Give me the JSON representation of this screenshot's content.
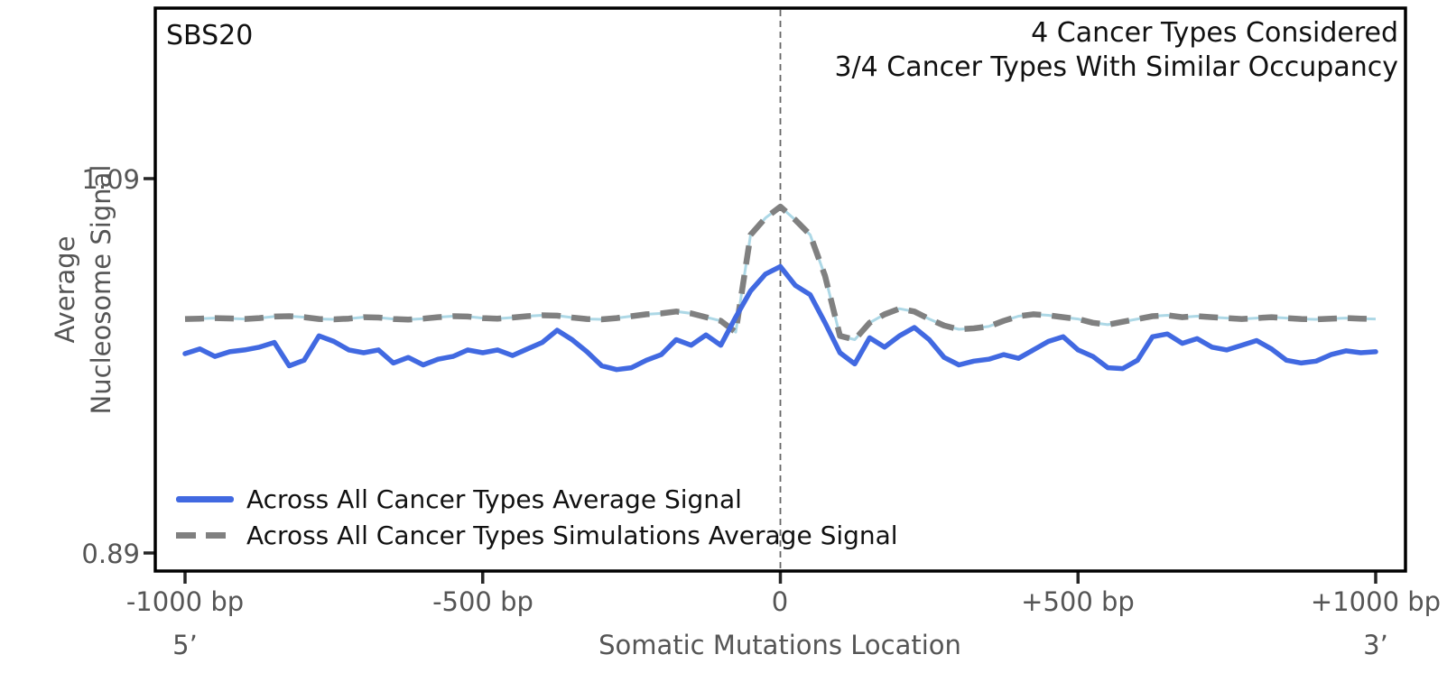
{
  "header": {
    "signature_label": "SBS20",
    "info_line1": "4 Cancer Types Considered",
    "info_line2": "3/4 Cancer Types With Similar Occupancy"
  },
  "axes": {
    "y_label_line1": "Average",
    "y_label_line2": "Nucleosome Signal",
    "x_label": "Somatic Mutations Location",
    "five_prime": "5’",
    "three_prime": "3’",
    "y_ticks": [
      {
        "value": 1.09,
        "label": "1.09"
      },
      {
        "value": 0.89,
        "label": "0.89"
      }
    ],
    "x_ticks": [
      {
        "bp": -1000,
        "label": "-1000 bp"
      },
      {
        "bp": -500,
        "label": "-500 bp"
      },
      {
        "bp": 0,
        "label": "0"
      },
      {
        "bp": 500,
        "label": "+500 bp"
      },
      {
        "bp": 1000,
        "label": "+1000 bp"
      }
    ]
  },
  "legend": {
    "items": [
      {
        "label": "Across All Cancer Types Average Signal",
        "color": "#4169E1",
        "style": "solid"
      },
      {
        "label": "Across All Cancer Types Simulations Average Signal",
        "color": "#808080",
        "style": "dashed",
        "underlay_color": "#ADD8E6"
      }
    ]
  },
  "colors": {
    "real_signal": "#4169E1",
    "simulations_dash": "#808080",
    "simulations_underlay": "#ADD8E6",
    "axis_border": "#000000",
    "tick_mark": "#262626",
    "label_gray": "#555555",
    "center_line": "#666666",
    "background": "#ffffff"
  },
  "chart_data": {
    "type": "line",
    "title": "SBS20",
    "xlabel": "Somatic Mutations Location",
    "ylabel": "Average Nucleosome Signal",
    "xlim": [
      -1050,
      1050
    ],
    "ylim": [
      0.88,
      1.18
    ],
    "grid": false,
    "legend_position": "lower left",
    "vline_x": 0,
    "x_start": -1000,
    "x_step": 25,
    "x_tick_values": [
      -1000,
      -500,
      0,
      500,
      1000
    ],
    "y_tick_values": [
      1.09,
      0.89
    ],
    "series": [
      {
        "name": "Across All Cancer Types Average Signal",
        "color": "#4169E1",
        "style": "solid",
        "values": [
          0.9965,
          0.999,
          0.995,
          0.9975,
          0.9985,
          1.0,
          1.0025,
          0.99,
          0.993,
          1.006,
          1.003,
          0.9985,
          0.997,
          0.9985,
          0.9915,
          0.9945,
          0.9905,
          0.9935,
          0.995,
          0.9985,
          0.997,
          0.9985,
          0.9955,
          0.999,
          1.0025,
          1.009,
          1.004,
          0.9975,
          0.99,
          0.988,
          0.989,
          0.993,
          0.996,
          1.004,
          1.001,
          1.0065,
          1.001,
          1.016,
          1.03,
          1.039,
          1.043,
          1.033,
          1.028,
          1.013,
          0.997,
          0.991,
          1.005,
          1.0,
          1.006,
          1.0105,
          1.004,
          0.9945,
          0.9905,
          0.9925,
          0.9935,
          0.996,
          0.994,
          0.9985,
          1.003,
          1.0055,
          0.9985,
          0.995,
          0.989,
          0.9885,
          0.993,
          1.0055,
          1.007,
          1.002,
          1.0045,
          1.0,
          0.9985,
          1.001,
          1.0035,
          0.999,
          0.993,
          0.9915,
          0.9925,
          0.996,
          0.998,
          0.997,
          0.9975
        ]
      },
      {
        "name": "Across All Cancer Types Simulations Average Signal",
        "color": "#808080",
        "style": "dashed",
        "underlay_color": "#ADD8E6",
        "values": [
          1.015,
          1.0152,
          1.0155,
          1.0153,
          1.015,
          1.0155,
          1.0163,
          1.0165,
          1.016,
          1.015,
          1.0148,
          1.0152,
          1.016,
          1.0158,
          1.015,
          1.0147,
          1.0152,
          1.016,
          1.0165,
          1.0163,
          1.0155,
          1.0152,
          1.0158,
          1.0165,
          1.017,
          1.0168,
          1.0158,
          1.015,
          1.0148,
          1.0155,
          1.0165,
          1.0175,
          1.018,
          1.019,
          1.018,
          1.016,
          1.014,
          1.008,
          1.06,
          1.069,
          1.075,
          1.068,
          1.06,
          1.038,
          1.006,
          1.004,
          1.013,
          1.0175,
          1.0205,
          1.019,
          1.015,
          1.0115,
          1.0095,
          1.01,
          1.011,
          1.014,
          1.0165,
          1.0175,
          1.017,
          1.016,
          1.015,
          1.013,
          1.012,
          1.0135,
          1.015,
          1.0165,
          1.017,
          1.016,
          1.0165,
          1.016,
          1.0155,
          1.015,
          1.0155,
          1.016,
          1.0155,
          1.015,
          1.0148,
          1.0152,
          1.0155,
          1.0152,
          1.015
        ]
      }
    ]
  }
}
